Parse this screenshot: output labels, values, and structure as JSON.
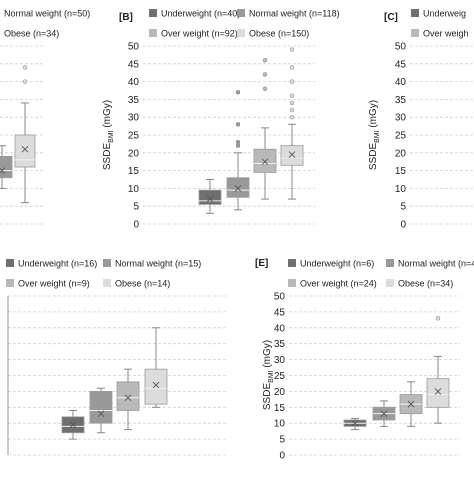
{
  "colors": {
    "underweight": "#6f6f6f",
    "normal": "#999999",
    "over": "#b9b9b9",
    "obese": "#dcdcdc",
    "grid": "#cfcfcf",
    "text": "#222222",
    "mean_marker": "#8a8a8a"
  },
  "chart_data": [
    {
      "id": "A",
      "type": "box",
      "panel_label": "",
      "ylabel": "",
      "legend": [
        {
          "key": "normal",
          "text": "Normal weight (n=50)"
        },
        {
          "key": "obese",
          "text": "Obese (n=34)"
        }
      ],
      "ylim": [
        0,
        50
      ],
      "yticks": [],
      "grid": true,
      "series": [
        {
          "key": "normal",
          "q1": 13,
          "median": 15,
          "q3": 19,
          "whisker_low": 10,
          "whisker_high": 22,
          "mean": 15,
          "outliers": []
        },
        {
          "key": "obese",
          "q1": 16,
          "median": 18,
          "q3": 25,
          "whisker_low": 6,
          "whisker_high": 34,
          "mean": 21,
          "outliers": [
            40,
            44
          ]
        }
      ]
    },
    {
      "id": "B",
      "type": "box",
      "panel_label": "[B]",
      "ylabel": "SSDE",
      "ylabel_sub": "BMI",
      "ylabel_unit": " (mGy)",
      "legend": [
        {
          "key": "underweight",
          "text": "Underweight (n=40)"
        },
        {
          "key": "normal",
          "text": "Normal weight (n=118)"
        },
        {
          "key": "over",
          "text": "Over weight (n=92)"
        },
        {
          "key": "obese",
          "text": "Obese (n=150)"
        }
      ],
      "ylim": [
        0,
        50
      ],
      "yticks": [
        "0",
        "5",
        "10",
        "15",
        "20",
        "25",
        "30",
        "35",
        "40",
        "45",
        "50"
      ],
      "grid": true,
      "series": [
        {
          "key": "underweight",
          "q1": 5.5,
          "median": 6.5,
          "q3": 9.5,
          "whisker_low": 3,
          "whisker_high": 12.5,
          "mean": 7,
          "outliers": []
        },
        {
          "key": "normal",
          "q1": 7.5,
          "median": 9.5,
          "q3": 13,
          "whisker_low": 4,
          "whisker_high": 20,
          "mean": 10,
          "outliers": [
            22,
            23,
            28,
            37
          ]
        },
        {
          "key": "over",
          "q1": 14.5,
          "median": 17,
          "q3": 21,
          "whisker_low": 7,
          "whisker_high": 27,
          "mean": 17.5,
          "outliers": [
            38,
            42,
            46
          ]
        },
        {
          "key": "obese",
          "q1": 16.5,
          "median": 18.5,
          "q3": 22,
          "whisker_low": 7,
          "whisker_high": 28,
          "mean": 19.5,
          "outliers": [
            30,
            32,
            34,
            36,
            40,
            44,
            49
          ]
        }
      ]
    },
    {
      "id": "C",
      "type": "box",
      "panel_label": "[C]",
      "ylabel": "SSDE",
      "ylabel_sub": "BMI",
      "ylabel_unit": " (mGy)",
      "legend": [
        {
          "key": "underweight",
          "text": "Underweig"
        },
        {
          "key": "over",
          "text": "Over weigh"
        }
      ],
      "ylim": [
        0,
        50
      ],
      "yticks": [
        "0",
        "5",
        "10",
        "15",
        "20",
        "25",
        "30",
        "35",
        "40",
        "45",
        "50"
      ],
      "grid": true,
      "series": []
    },
    {
      "id": "D",
      "type": "box",
      "panel_label": "",
      "ylabel": "",
      "legend": [
        {
          "key": "underweight",
          "text": "Underweight (n=16)"
        },
        {
          "key": "normal",
          "text": "Normal weight (n=15)"
        },
        {
          "key": "over",
          "text": "Over weight (n=9)"
        },
        {
          "key": "obese",
          "text": "Obese (n=14)"
        }
      ],
      "ylim": [
        0,
        50
      ],
      "yticks": [],
      "grid": true,
      "series": [
        {
          "key": "underweight",
          "q1": 7,
          "median": 9,
          "q3": 12,
          "whisker_low": 5,
          "whisker_high": 14,
          "mean": 9.5,
          "outliers": []
        },
        {
          "key": "normal",
          "q1": 10,
          "median": 14,
          "q3": 20,
          "whisker_low": 7,
          "whisker_high": 21,
          "mean": 13,
          "outliers": []
        },
        {
          "key": "over",
          "q1": 14,
          "median": 18,
          "q3": 23,
          "whisker_low": 8,
          "whisker_high": 27,
          "mean": 18,
          "outliers": []
        },
        {
          "key": "obese",
          "q1": 16,
          "median": 21,
          "q3": 27,
          "whisker_low": 15,
          "whisker_high": 40,
          "mean": 22,
          "outliers": []
        }
      ]
    },
    {
      "id": "E",
      "type": "box",
      "panel_label": "[E]",
      "ylabel": "SSDE",
      "ylabel_sub": "BMI",
      "ylabel_unit": " (mGy)",
      "legend": [
        {
          "key": "underweight",
          "text": "Underweight (n=6)"
        },
        {
          "key": "normal",
          "text": "Normal weight (n=4)"
        },
        {
          "key": "over",
          "text": "Over weight (n=24)"
        },
        {
          "key": "obese",
          "text": "Obese (n=34)"
        }
      ],
      "ylim": [
        0,
        50
      ],
      "yticks": [
        "0",
        "5",
        "10",
        "15",
        "20",
        "25",
        "30",
        "35",
        "40",
        "45",
        "50"
      ],
      "grid": true,
      "series": [
        {
          "key": "underweight",
          "q1": 9,
          "median": 10,
          "q3": 11,
          "whisker_low": 8,
          "whisker_high": 11.5,
          "mean": 10,
          "outliers": []
        },
        {
          "key": "normal",
          "q1": 11,
          "median": 13,
          "q3": 15,
          "whisker_low": 9,
          "whisker_high": 17,
          "mean": 13,
          "outliers": []
        },
        {
          "key": "over",
          "q1": 13,
          "median": 16,
          "q3": 19,
          "whisker_low": 9,
          "whisker_high": 23,
          "mean": 16,
          "outliers": []
        },
        {
          "key": "obese",
          "q1": 15,
          "median": 19,
          "q3": 24,
          "whisker_low": 10,
          "whisker_high": 31,
          "mean": 20,
          "outliers": [
            43
          ]
        }
      ]
    }
  ]
}
